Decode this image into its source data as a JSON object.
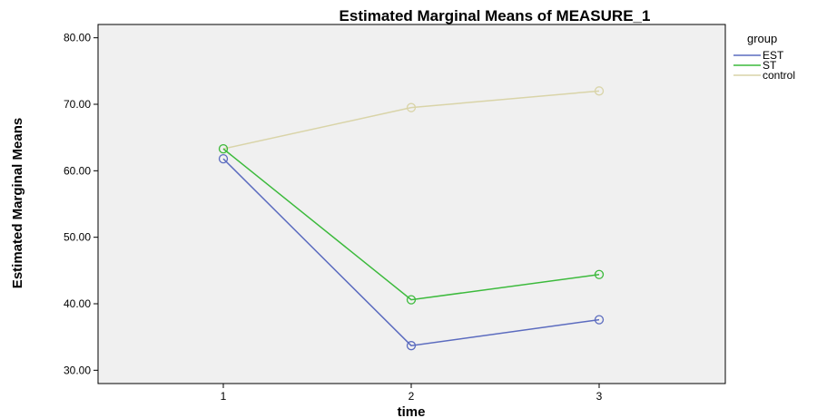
{
  "chart_data": {
    "type": "line",
    "title": "Estimated Marginal Means of MEASURE_1",
    "xlabel": "time",
    "ylabel": "Estimated Marginal Means",
    "categories": [
      "1",
      "2",
      "3"
    ],
    "ylim": [
      28,
      82
    ],
    "yticks": [
      "30.00",
      "40.00",
      "50.00",
      "60.00",
      "70.00",
      "80.00"
    ],
    "legend_title": "group",
    "legend_position": "top-right",
    "grid": false,
    "series": [
      {
        "name": "EST",
        "color": "#5b6bbf",
        "values": [
          61.8,
          33.7,
          37.6
        ]
      },
      {
        "name": "ST",
        "color": "#3cba3c",
        "values": [
          63.3,
          40.6,
          44.4
        ]
      },
      {
        "name": "control",
        "color": "#d9d4a8",
        "values": [
          63.3,
          69.5,
          72.0
        ]
      }
    ]
  }
}
